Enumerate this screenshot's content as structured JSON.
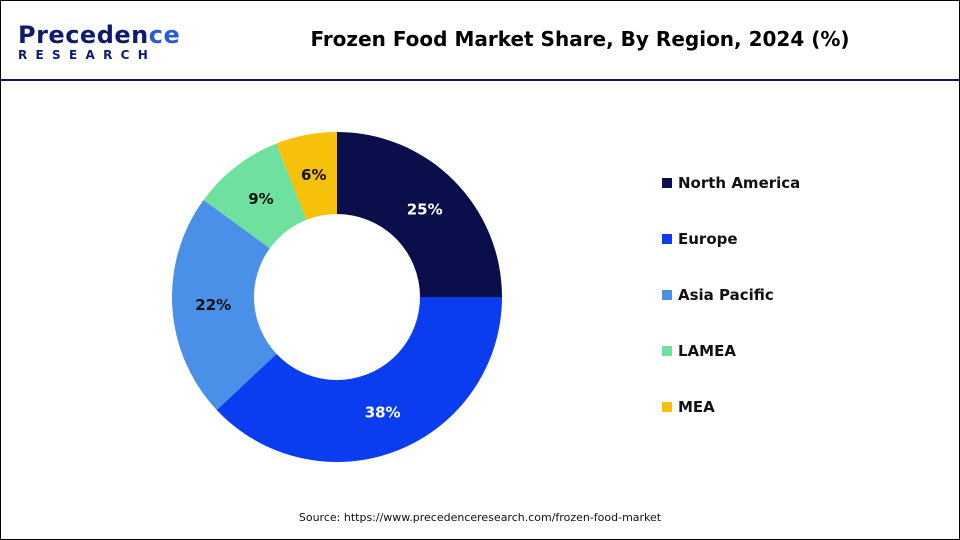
{
  "logo": {
    "line1_a": "P",
    "line1_b": "receden",
    "line1_c": "ce",
    "line2_a": "RESEAR",
    "line2_b": "CH"
  },
  "chart_data": {
    "type": "pie",
    "variant": "donut",
    "title": "Frozen Food Market Share, By Region, 2024 (%)",
    "categories": [
      "North America",
      "Europe",
      "Asia Pacific",
      "LAMEA",
      "MEA"
    ],
    "values": [
      25,
      38,
      22,
      9,
      6
    ],
    "data_labels": [
      "25%",
      "38%",
      "22%",
      "9%",
      "6%"
    ],
    "colors": [
      "#0a0e4a",
      "#0a3cf0",
      "#4a8fe8",
      "#6ee0a0",
      "#f7c00a"
    ],
    "legend_position": "right",
    "start_angle": "top, clockwise"
  },
  "source": "Source: https://www.precedenceresearch.com/frozen-food-market"
}
